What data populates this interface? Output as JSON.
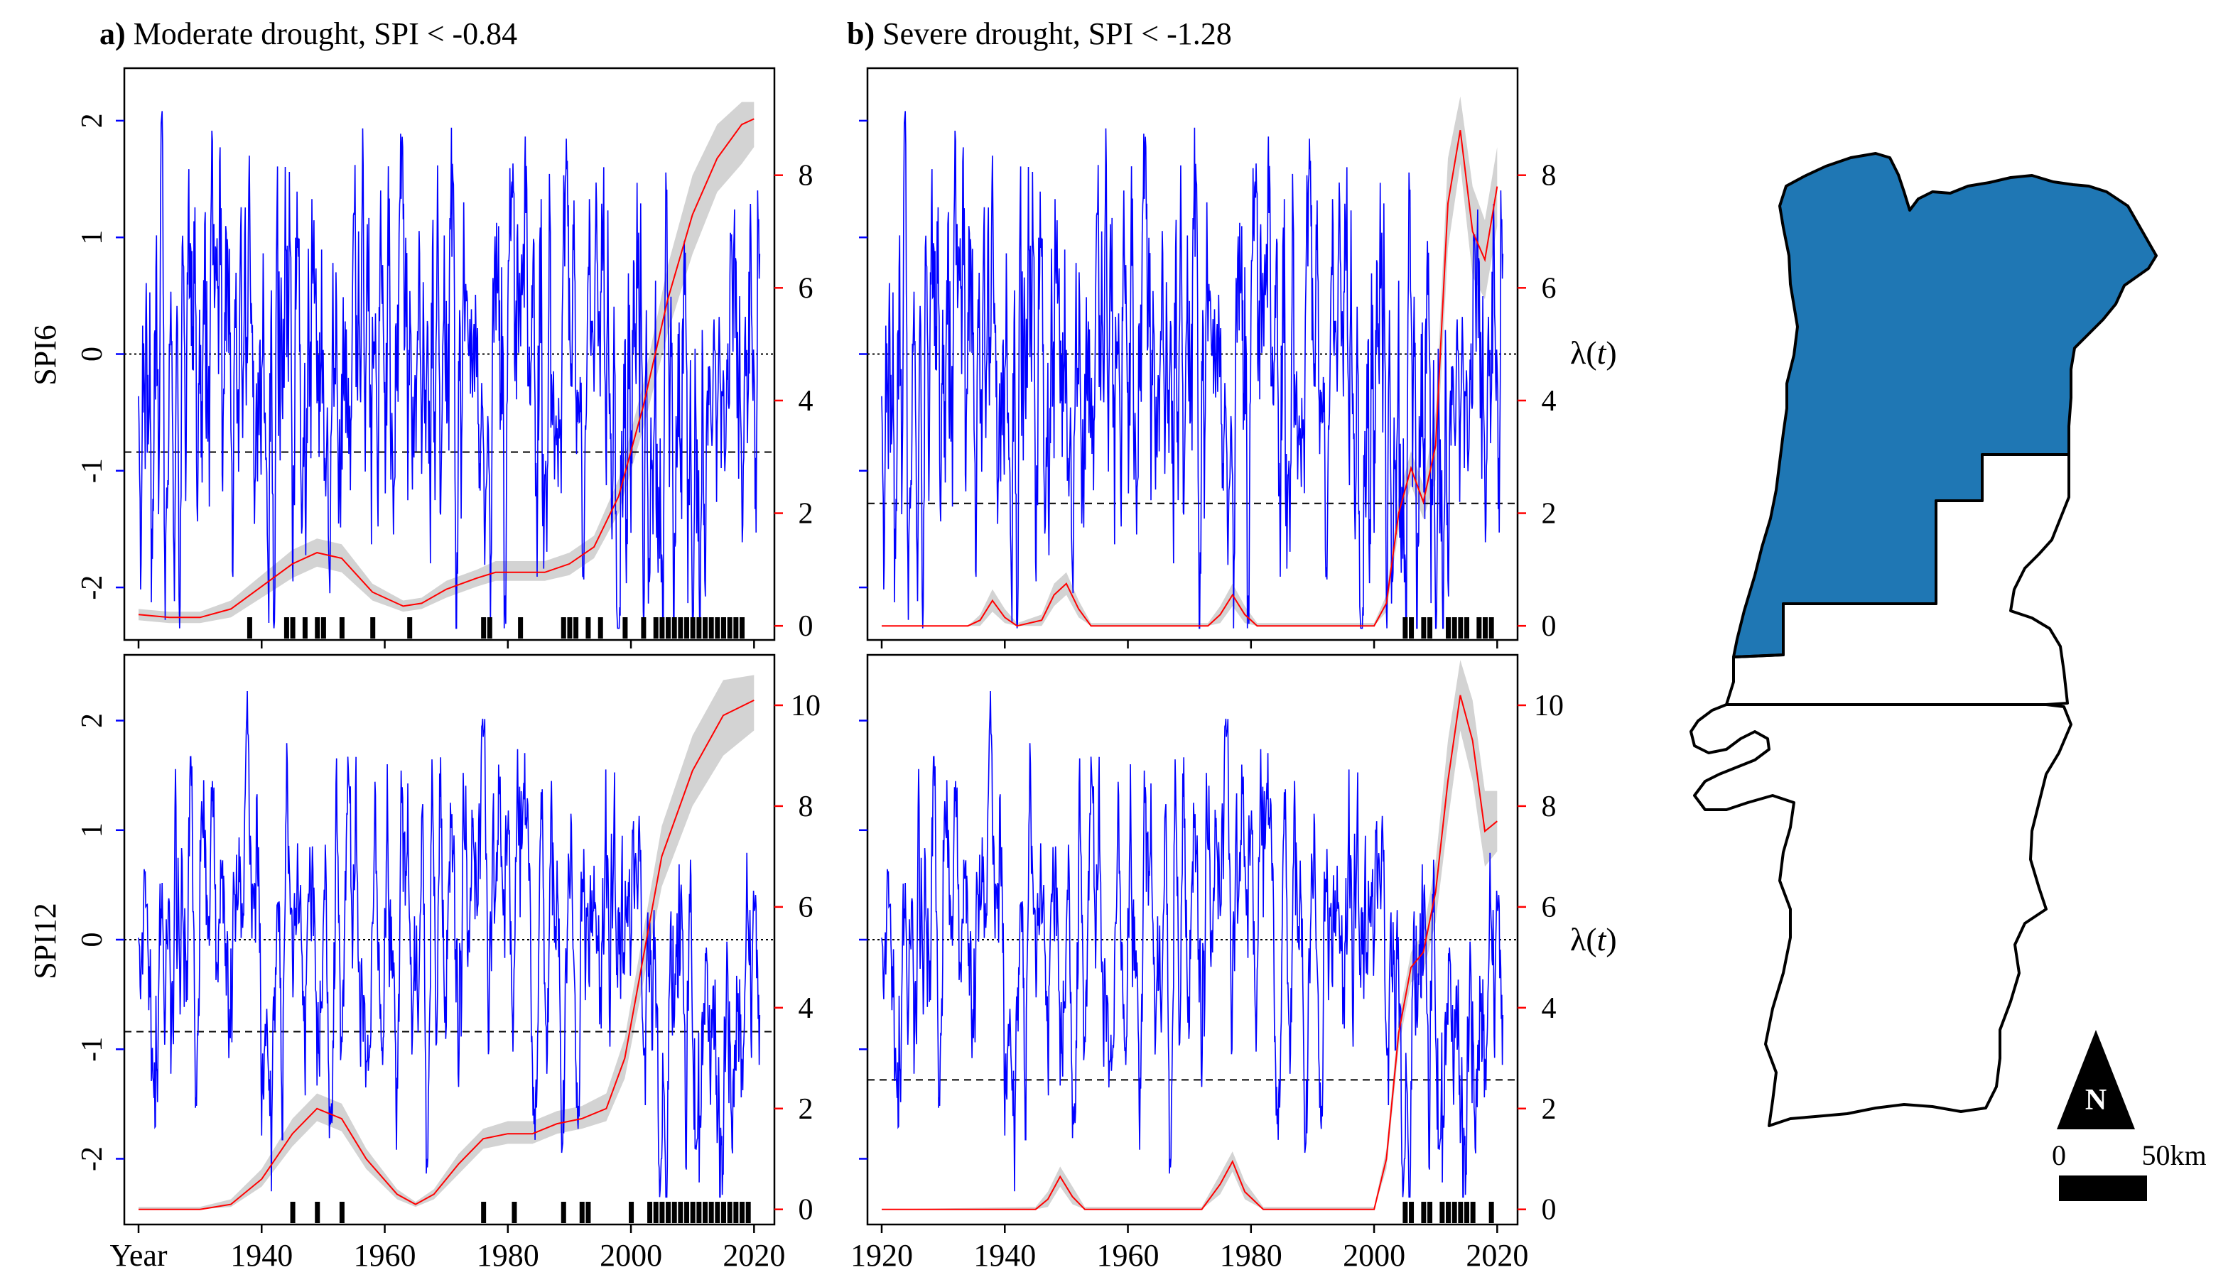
{
  "panel_titles": [
    {
      "letter": "a)",
      "text": " Moderate drought, SPI < -0.84"
    },
    {
      "letter": "b)",
      "text": " Severe drought, SPI < -1.28"
    }
  ],
  "row_labels": [
    "SPI6",
    "SPI12"
  ],
  "lambda_label": {
    "prefix": "λ(",
    "var": "t",
    "suffix": ")"
  },
  "x_first_label": "Year",
  "map": {
    "north_label": "N",
    "scale_zero": "0",
    "scale_label": "50km",
    "highlight_color": "#1f77b4"
  },
  "colors": {
    "spi": "#0000ff",
    "lambda": "#ff0000",
    "band": "#d3d3d3",
    "ticks_right": "#ff0000"
  },
  "chart_data": [
    {
      "type": "line",
      "panel": "a-top",
      "series": "SPI6",
      "xlim": [
        1920,
        2021
      ],
      "ylim_left": [
        -2.45,
        2.45
      ],
      "ylim_right": [
        -0.25,
        9.9
      ],
      "left_ticks": [
        "-2",
        "-1",
        "0",
        "1",
        "2"
      ],
      "right_ticks": [
        "0",
        "2",
        "4",
        "6",
        "8"
      ],
      "x_ticks": [
        "",
        "1940",
        "1960",
        "1980",
        "2000",
        "2020"
      ],
      "threshold": -0.84,
      "lambda_x": [
        1920,
        1925,
        1930,
        1935,
        1940,
        1945,
        1949,
        1953,
        1958,
        1963,
        1966,
        1970,
        1975,
        1978,
        1982,
        1986,
        1990,
        1994,
        1998,
        2002,
        2006,
        2010,
        2014,
        2018,
        2020
      ],
      "lambda": [
        0.2,
        0.15,
        0.15,
        0.3,
        0.7,
        1.1,
        1.3,
        1.2,
        0.6,
        0.35,
        0.4,
        0.65,
        0.85,
        0.95,
        0.95,
        0.95,
        1.1,
        1.4,
        2.3,
        3.9,
        5.8,
        7.3,
        8.3,
        8.9,
        9.0
      ],
      "band_upper": [
        0.3,
        0.25,
        0.25,
        0.45,
        0.9,
        1.35,
        1.55,
        1.45,
        0.75,
        0.45,
        0.5,
        0.8,
        1.0,
        1.15,
        1.15,
        1.15,
        1.3,
        1.6,
        2.6,
        4.3,
        6.4,
        8.0,
        8.9,
        9.3,
        9.3
      ],
      "band_lower": [
        0.1,
        0.05,
        0.05,
        0.15,
        0.5,
        0.85,
        1.05,
        0.95,
        0.45,
        0.25,
        0.3,
        0.5,
        0.7,
        0.8,
        0.8,
        0.8,
        0.9,
        1.2,
        2.0,
        3.5,
        5.2,
        6.6,
        7.7,
        8.2,
        8.5
      ],
      "events": [
        1938,
        1944,
        1945,
        1947,
        1949,
        1950,
        1953,
        1958,
        1964,
        1976,
        1977,
        1982,
        1989,
        1990,
        1991,
        1993,
        1995,
        1999,
        2002,
        2004,
        2005,
        2006,
        2007,
        2008,
        2009,
        2010,
        2011,
        2012,
        2013,
        2014,
        2015,
        2016,
        2017,
        2018
      ]
    },
    {
      "type": "line",
      "panel": "b-top",
      "series": "SPI6",
      "xlim": [
        1920,
        2021
      ],
      "ylim_left": [
        -2.45,
        2.45
      ],
      "ylim_right": [
        -0.25,
        9.9
      ],
      "right_ticks": [
        "0",
        "2",
        "4",
        "6",
        "8"
      ],
      "x_ticks": [
        "",
        "1940",
        "1960",
        "1980",
        "2000",
        "2020"
      ],
      "threshold": -1.28,
      "lambda_x": [
        1920,
        1934,
        1936,
        1938,
        1940,
        1942,
        1946,
        1948,
        1950,
        1952,
        1954,
        1973,
        1975,
        1977,
        1979,
        1981,
        2000,
        2002,
        2004,
        2006,
        2008,
        2010,
        2012,
        2014,
        2016,
        2018,
        2020
      ],
      "lambda": [
        0,
        0,
        0.1,
        0.45,
        0.15,
        0,
        0.1,
        0.55,
        0.75,
        0.3,
        0,
        0,
        0.2,
        0.55,
        0.2,
        0,
        0,
        0.4,
        2.0,
        2.8,
        2.2,
        3.2,
        7.5,
        8.8,
        7.0,
        6.5,
        7.8
      ],
      "band_upper": [
        0,
        0,
        0.2,
        0.65,
        0.3,
        0.05,
        0.2,
        0.75,
        0.95,
        0.45,
        0.05,
        0.05,
        0.35,
        0.75,
        0.35,
        0.05,
        0.05,
        0.55,
        2.3,
        3.1,
        2.5,
        3.8,
        8.3,
        9.4,
        7.8,
        7.2,
        8.5
      ],
      "band_lower": [
        0,
        0,
        0,
        0.25,
        0.05,
        0,
        0,
        0.35,
        0.55,
        0.15,
        0,
        0,
        0.05,
        0.35,
        0.05,
        0,
        0,
        0.25,
        1.7,
        2.5,
        1.9,
        2.6,
        6.7,
        8.2,
        6.2,
        5.8,
        7.1
      ],
      "events": [
        2005,
        2006,
        2008,
        2009,
        2012,
        2013,
        2014,
        2015,
        2017,
        2018,
        2019
      ]
    },
    {
      "type": "line",
      "panel": "a-bottom",
      "series": "SPI12",
      "xlim": [
        1920,
        2021
      ],
      "ylim_left": [
        -2.6,
        2.6
      ],
      "ylim_right": [
        -0.3,
        11.0
      ],
      "left_ticks": [
        "-2",
        "-1",
        "0",
        "1",
        "2"
      ],
      "right_ticks": [
        "0",
        "2",
        "4",
        "6",
        "8",
        "10"
      ],
      "x_ticks": [
        "Year",
        "1940",
        "1960",
        "1980",
        "2000",
        "2020"
      ],
      "threshold": -0.84,
      "lambda_x": [
        1920,
        1930,
        1935,
        1940,
        1945,
        1949,
        1953,
        1957,
        1962,
        1965,
        1968,
        1972,
        1976,
        1980,
        1984,
        1988,
        1992,
        1996,
        1999,
        2002,
        2005,
        2010,
        2015,
        2020
      ],
      "lambda": [
        0,
        0,
        0.1,
        0.6,
        1.5,
        2.0,
        1.8,
        1.0,
        0.3,
        0.1,
        0.3,
        0.9,
        1.4,
        1.5,
        1.5,
        1.7,
        1.8,
        2.0,
        3.0,
        5.0,
        7.0,
        8.7,
        9.8,
        10.1
      ],
      "band_upper": [
        0.05,
        0.05,
        0.2,
        0.8,
        1.8,
        2.3,
        2.1,
        1.2,
        0.4,
        0.15,
        0.4,
        1.1,
        1.6,
        1.75,
        1.75,
        1.95,
        2.05,
        2.3,
        3.4,
        5.5,
        7.6,
        9.4,
        10.5,
        10.6
      ],
      "band_lower": [
        0,
        0,
        0.05,
        0.45,
        1.25,
        1.75,
        1.55,
        0.8,
        0.2,
        0.05,
        0.2,
        0.7,
        1.2,
        1.3,
        1.3,
        1.5,
        1.6,
        1.75,
        2.6,
        4.5,
        6.4,
        8.0,
        9.0,
        9.5
      ],
      "events": [
        1945,
        1949,
        1953,
        1976,
        1981,
        1989,
        1992,
        1993,
        2000,
        2003,
        2004,
        2005,
        2006,
        2007,
        2008,
        2009,
        2010,
        2011,
        2012,
        2013,
        2014,
        2015,
        2016,
        2017,
        2018,
        2019
      ]
    },
    {
      "type": "line",
      "panel": "b-bottom",
      "series": "SPI12",
      "xlim": [
        1920,
        2021
      ],
      "ylim_left": [
        -2.6,
        2.6
      ],
      "ylim_right": [
        -0.3,
        11.0
      ],
      "right_ticks": [
        "0",
        "2",
        "4",
        "6",
        "8",
        "10"
      ],
      "x_ticks": [
        "1920",
        "1940",
        "1960",
        "1980",
        "2000",
        "2020"
      ],
      "threshold": -1.28,
      "lambda_x": [
        1920,
        1945,
        1947,
        1949,
        1951,
        1953,
        1972,
        1975,
        1977,
        1979,
        1982,
        2000,
        2002,
        2004,
        2006,
        2008,
        2010,
        2012,
        2014,
        2016,
        2018,
        2020
      ],
      "lambda": [
        0,
        0,
        0.2,
        0.65,
        0.25,
        0,
        0,
        0.5,
        0.95,
        0.35,
        0,
        0,
        1.0,
        3.5,
        4.8,
        5.1,
        6.3,
        8.5,
        10.2,
        9.3,
        7.5,
        7.7
      ],
      "band_upper": [
        0,
        0.05,
        0.35,
        0.85,
        0.45,
        0.05,
        0.05,
        0.7,
        1.15,
        0.55,
        0.05,
        0.05,
        1.2,
        3.8,
        5.1,
        5.5,
        6.9,
        9.3,
        10.9,
        10.1,
        8.3,
        8.3
      ],
      "band_lower": [
        0,
        0,
        0.05,
        0.45,
        0.1,
        0,
        0,
        0.3,
        0.75,
        0.2,
        0,
        0,
        0.8,
        3.2,
        4.5,
        4.7,
        5.7,
        7.7,
        9.5,
        8.5,
        6.8,
        7.1
      ],
      "events": [
        2005,
        2006,
        2008,
        2009,
        2011,
        2012,
        2013,
        2014,
        2015,
        2016,
        2019
      ]
    }
  ]
}
